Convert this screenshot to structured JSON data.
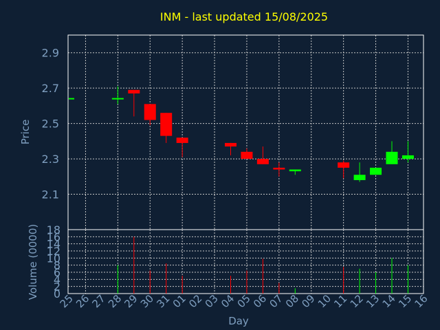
{
  "chart_data": {
    "type": "candlestick",
    "title": "INM - last updated 15/08/2025",
    "xlabel": "Day",
    "ylabel_price": "Price",
    "ylabel_volume": "Volume (0000)",
    "x_ticks": [
      "25",
      "26",
      "27",
      "28",
      "29",
      "30",
      "31",
      "01",
      "02",
      "03",
      "04",
      "05",
      "06",
      "07",
      "08",
      "09",
      "10",
      "11",
      "12",
      "13",
      "14",
      "15",
      "16"
    ],
    "price_ylim": [
      1.9,
      3.0
    ],
    "price_ticks": [
      "2.1",
      "2.3",
      "2.5",
      "2.7",
      "2.9"
    ],
    "volume_ylim": [
      0,
      18
    ],
    "volume_ticks": [
      "0",
      "2",
      "4",
      "6",
      "8",
      "10",
      "12",
      "14",
      "16",
      "18"
    ],
    "grid": true,
    "colors": {
      "background": "#0f1f33",
      "frame": "#ffffff",
      "grid": "#c8c8c8",
      "title": "#ffff00",
      "axis_text": "#7f9fc0",
      "up": "#00ff00",
      "down": "#ff0000"
    },
    "candles": [
      {
        "day": "25",
        "open": 2.64,
        "high": 2.64,
        "low": 2.64,
        "close": 2.64,
        "volume": 0,
        "direction": "up"
      },
      {
        "day": "28",
        "open": 2.635,
        "high": 2.71,
        "low": 2.61,
        "close": 2.64,
        "volume": 8,
        "direction": "up"
      },
      {
        "day": "29",
        "open": 2.69,
        "high": 2.69,
        "low": 2.54,
        "close": 2.67,
        "volume": 16,
        "direction": "down"
      },
      {
        "day": "30",
        "open": 2.61,
        "high": 2.61,
        "low": 2.49,
        "close": 2.52,
        "volume": 6.5,
        "direction": "down"
      },
      {
        "day": "31",
        "open": 2.56,
        "high": 2.56,
        "low": 2.39,
        "close": 2.43,
        "volume": 8.5,
        "direction": "down"
      },
      {
        "day": "01",
        "open": 2.42,
        "high": 2.42,
        "low": 2.31,
        "close": 2.39,
        "volume": 5,
        "direction": "down"
      },
      {
        "day": "04",
        "open": 2.39,
        "high": 2.39,
        "low": 2.32,
        "close": 2.37,
        "volume": 5,
        "direction": "down"
      },
      {
        "day": "05",
        "open": 2.34,
        "high": 2.36,
        "low": 2.3,
        "close": 2.3,
        "volume": 6.5,
        "direction": "down"
      },
      {
        "day": "06",
        "open": 2.3,
        "high": 2.37,
        "low": 2.27,
        "close": 2.27,
        "volume": 9.8,
        "direction": "down"
      },
      {
        "day": "07",
        "open": 2.25,
        "high": 2.28,
        "low": 2.2,
        "close": 2.24,
        "volume": 3,
        "direction": "down"
      },
      {
        "day": "08",
        "open": 2.23,
        "high": 2.24,
        "low": 2.21,
        "close": 2.24,
        "volume": 1.5,
        "direction": "up"
      },
      {
        "day": "11",
        "open": 2.28,
        "high": 2.29,
        "low": 2.19,
        "close": 2.25,
        "volume": 7.5,
        "direction": "down"
      },
      {
        "day": "12",
        "open": 2.18,
        "high": 2.28,
        "low": 2.17,
        "close": 2.21,
        "volume": 7,
        "direction": "up"
      },
      {
        "day": "13",
        "open": 2.21,
        "high": 2.25,
        "low": 2.21,
        "close": 2.25,
        "volume": 6,
        "direction": "up"
      },
      {
        "day": "14",
        "open": 2.27,
        "high": 2.4,
        "low": 2.27,
        "close": 2.34,
        "volume": 10,
        "direction": "up"
      },
      {
        "day": "15",
        "open": 2.3,
        "high": 2.4,
        "low": 2.28,
        "close": 2.32,
        "volume": 8,
        "direction": "up"
      }
    ]
  }
}
